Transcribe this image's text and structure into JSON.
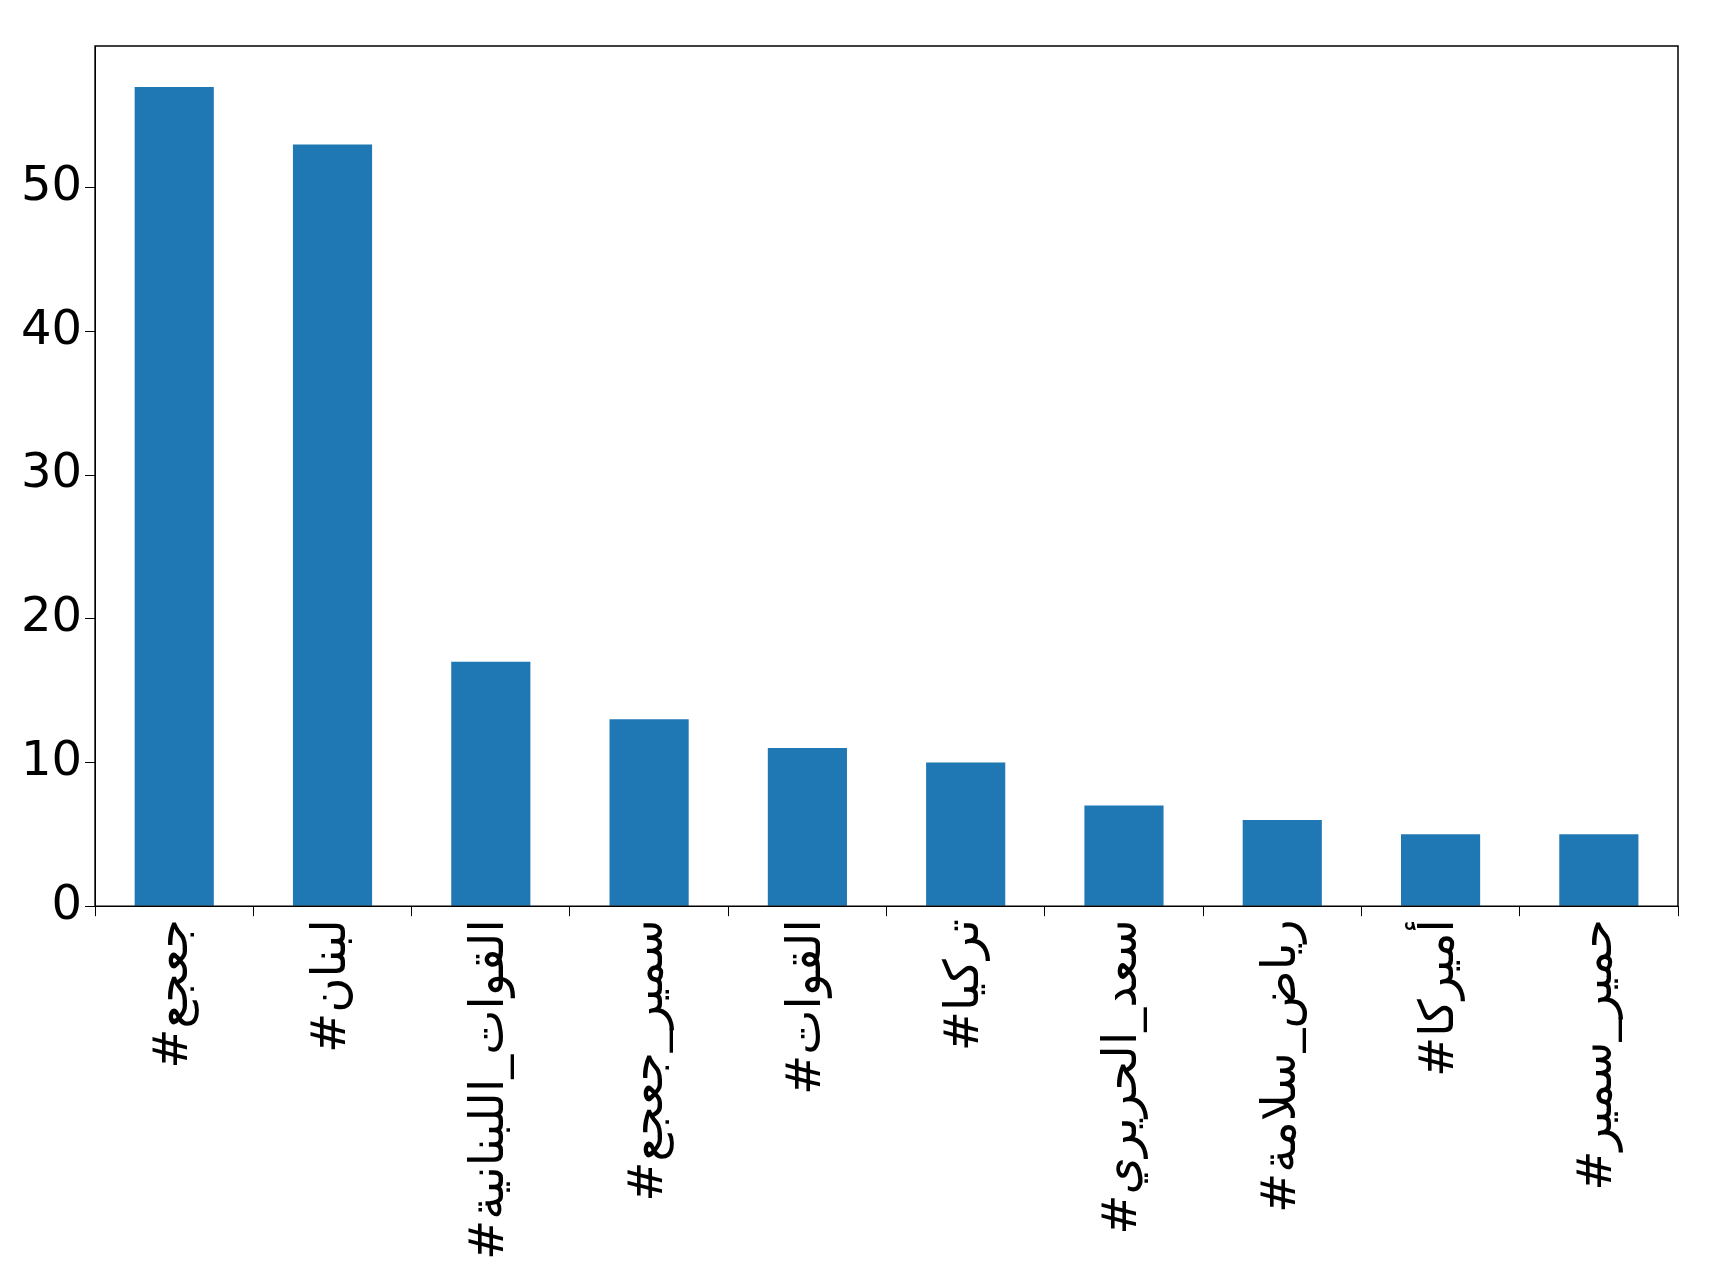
{
  "chart_data": {
    "type": "bar",
    "categories": [
      "#جعجع",
      "#لبنان",
      "#القوات_اللبنانية",
      "#سمير_جعجع",
      "#القوات",
      "#تركيا",
      "#سعد_الحريري",
      "#رياض_سلامة",
      "#أميركا",
      "#حمير_سمير"
    ],
    "values": [
      57,
      53,
      17,
      13,
      11,
      10,
      7,
      6,
      5,
      5
    ],
    "color": "#1f77b4",
    "ylim": [
      0,
      59.85
    ],
    "yticks": [
      0,
      10,
      20,
      30,
      40,
      50
    ],
    "grid": false,
    "legend": false
  }
}
